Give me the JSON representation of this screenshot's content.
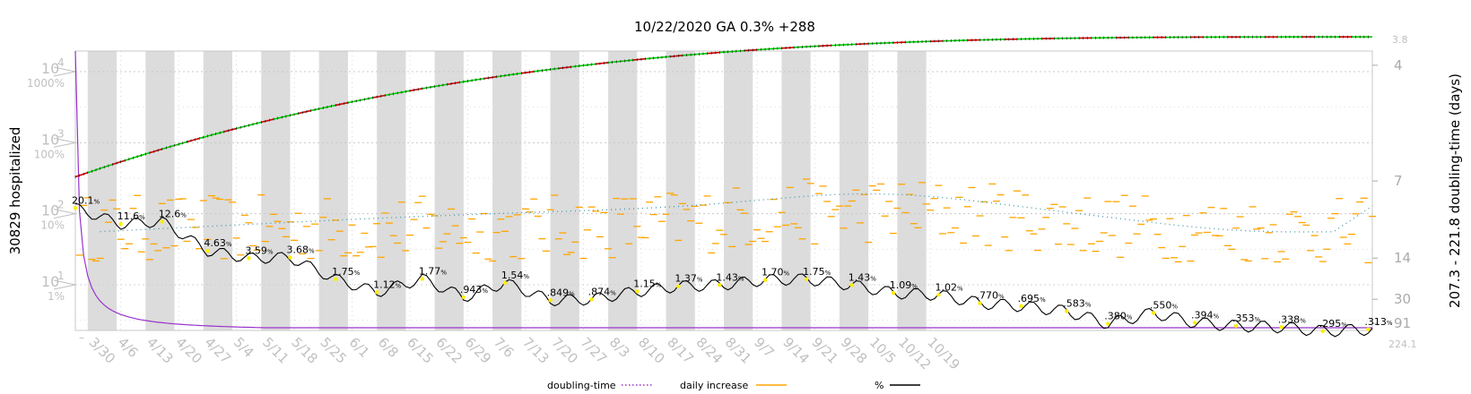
{
  "chart_data": {
    "type": "line",
    "title": "10/22/2020 GA 0.3% +288",
    "ylabel_left": "30829 hospitalized",
    "ylabel_right": "207.3 - 221.8 doubling-time (days)",
    "left_ticks": [
      {
        "main": "10",
        "exp": "4",
        "pct": "1000%",
        "log": 4
      },
      {
        "main": "10",
        "exp": "3",
        "pct": "100%",
        "log": 3
      },
      {
        "main": "10",
        "exp": "2",
        "pct": "10%",
        "log": 2
      },
      {
        "main": "10",
        "exp": "1",
        "pct": "1%",
        "log": 1
      }
    ],
    "right_ticks": [
      "4",
      "7",
      "14",
      "30",
      "91"
    ],
    "right_top": "3.8",
    "right_bottom": "224.1",
    "x_labels": [
      "3/30",
      "4/6",
      "4/13",
      "4/20",
      "4/27",
      "5/4",
      "5/11",
      "5/18",
      "5/25",
      "6/1",
      "6/8",
      "6/15",
      "6/22",
      "6/29",
      "7/6",
      "7/13",
      "7/20",
      "7/27",
      "8/3",
      "8/10",
      "8/17",
      "8/24",
      "8/31",
      "9/7",
      "9/14",
      "9/21",
      "9/28",
      "10/5",
      "10/12",
      "10/19"
    ],
    "series": [
      {
        "name": "doubling-time",
        "color": "#9932cc",
        "style": "dotted"
      },
      {
        "name": "daily increase",
        "color": "#ffa500",
        "style": "dash"
      },
      {
        "name": "%",
        "color": "#000000",
        "style": "solid"
      }
    ],
    "pct_labels": [
      {
        "day": 0,
        "v": "20.1"
      },
      {
        "day": 11,
        "v": "11.6"
      },
      {
        "day": 21,
        "v": "12.6"
      },
      {
        "day": 32,
        "v": "4.63"
      },
      {
        "day": 42,
        "v": "3.59"
      },
      {
        "day": 52,
        "v": "3.68"
      },
      {
        "day": 63,
        "v": "1.75"
      },
      {
        "day": 73,
        "v": "1.12"
      },
      {
        "day": 84,
        "v": "1.77"
      },
      {
        "day": 94,
        "v": ".943"
      },
      {
        "day": 104,
        "v": "1.54"
      },
      {
        "day": 115,
        "v": ".849"
      },
      {
        "day": 125,
        "v": ".874"
      },
      {
        "day": 136,
        "v": "1.15"
      },
      {
        "day": 146,
        "v": "1.37"
      },
      {
        "day": 156,
        "v": "1.43"
      },
      {
        "day": 167,
        "v": "1.70"
      },
      {
        "day": 177,
        "v": "1.75"
      },
      {
        "day": 188,
        "v": "1.43"
      },
      {
        "day": 198,
        "v": "1.09"
      },
      {
        "day": 209,
        "v": "1.02"
      },
      {
        "day": 219,
        "v": ".770"
      },
      {
        "day": 229,
        "v": ".695"
      },
      {
        "day": 240,
        "v": ".583"
      },
      {
        "day": 250,
        "v": ".380"
      },
      {
        "day": 261,
        "v": ".550"
      },
      {
        "day": 271,
        "v": ".394"
      },
      {
        "day": 281,
        "v": ".353"
      },
      {
        "day": 292,
        "v": ".338"
      },
      {
        "day": 302,
        "v": ".295"
      },
      {
        "day": 313,
        "v": ".313"
      }
    ],
    "cumulative": {
      "start": 330,
      "end": 30829,
      "days": 314
    },
    "legend": [
      "doubling-time",
      "daily increase",
      "%"
    ],
    "colors": {
      "shade": "#dcdcdc",
      "purple": "#9932cc",
      "orange": "#ffa500",
      "green": "#00cc00",
      "red": "#cc0000",
      "teal": "#4a9ab0",
      "grid": "#c8c8c8"
    }
  }
}
